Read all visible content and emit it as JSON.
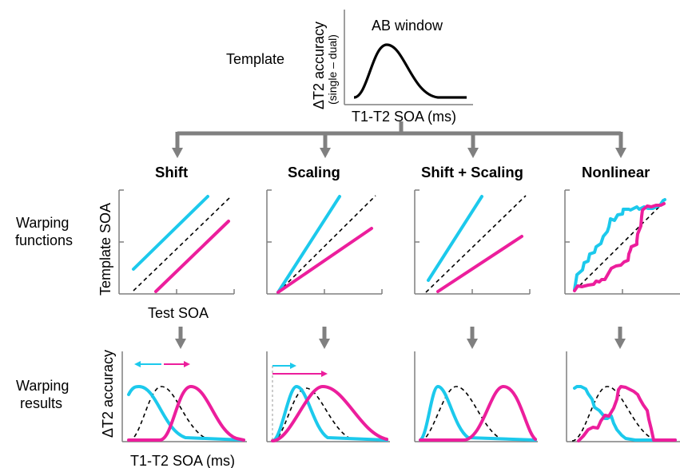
{
  "template": {
    "label": "Template",
    "window_label": "AB window",
    "ylabel": "ΔT2 accuracy",
    "ylabel_sub": "(single – dual)",
    "xlabel": "T1-T2 SOA (ms)"
  },
  "panels": [
    {
      "title": "Shift"
    },
    {
      "title": "Scaling"
    },
    {
      "title": "Shift + Scaling"
    },
    {
      "title": "Nonlinear"
    }
  ],
  "rows": {
    "warping_functions": {
      "line1": "Warping",
      "line2": "functions"
    },
    "warping_results": {
      "line1": "Warping",
      "line2": "results"
    }
  },
  "warping_axes": {
    "ylabel": "Template SOA",
    "xlabel": "Test SOA"
  },
  "result_axes": {
    "ylabel": "ΔT2 accuracy",
    "xlabel": "T1-T2 SOA (ms)"
  },
  "colors": {
    "cyan": "#1cc9ec",
    "magenta": "#ec1e9c",
    "arrow_gray": "#808080",
    "axis_gray": "#7f7f7f",
    "template": "#000000"
  }
}
